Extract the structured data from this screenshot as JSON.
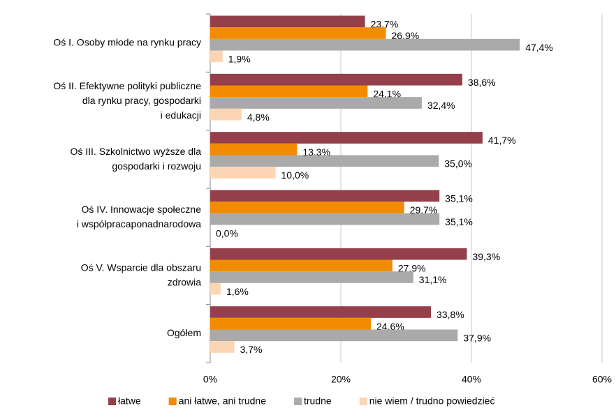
{
  "chart_data": {
    "type": "hbar",
    "categories": [
      "Oś I. Osoby młode na rynku pracy",
      "Oś II. Efektywne polityki publiczne\ndla rynku pracy, gospodarki\ni edukacji",
      "Oś III. Szkolnictwo wyższe dla\ngospodarki i rozwoju",
      "Oś IV. Innowacje społeczne\ni współpracaponadnarodowa",
      "Oś V. Wsparcie dla obszaru\nzdrowia",
      "Ogółem"
    ],
    "series": [
      {
        "name": "łatwe",
        "color": "#953f4b",
        "values": [
          23.7,
          38.6,
          41.7,
          35.1,
          39.3,
          33.8
        ],
        "value_labels": [
          "23,7%",
          "38,6%",
          "41,7%",
          "35,1%",
          "39,3%",
          "33,8%"
        ]
      },
      {
        "name": "ani łatwe, ani trudne",
        "color": "#f38b00",
        "values": [
          26.9,
          24.1,
          13.3,
          29.7,
          27.9,
          24.6
        ],
        "value_labels": [
          "26,9%",
          "24,1%",
          "13,3%",
          "29,7%",
          "27,9%",
          "24,6%"
        ]
      },
      {
        "name": "trudne",
        "color": "#aaaaaa",
        "values": [
          47.4,
          32.4,
          35.0,
          35.1,
          31.1,
          37.9
        ],
        "value_labels": [
          "47,4%",
          "32,4%",
          "35,0%",
          "35,1%",
          "31,1%",
          "37,9%"
        ]
      },
      {
        "name": "nie wiem / trudno powiedzieć",
        "color": "#fcd5b5",
        "values": [
          1.9,
          4.8,
          10.0,
          0.0,
          1.6,
          3.7
        ],
        "value_labels": [
          "1,9%",
          "4,8%",
          "10,0%",
          "0,0%",
          "1,6%",
          "3,7%"
        ]
      }
    ],
    "xlim": [
      0,
      60
    ],
    "xticks": [
      {
        "value": 0,
        "label": "0%"
      },
      {
        "value": 20,
        "label": "20%"
      },
      {
        "value": 40,
        "label": "40%"
      },
      {
        "value": 60,
        "label": "60%"
      }
    ],
    "grid": true,
    "legend": "bottom"
  }
}
